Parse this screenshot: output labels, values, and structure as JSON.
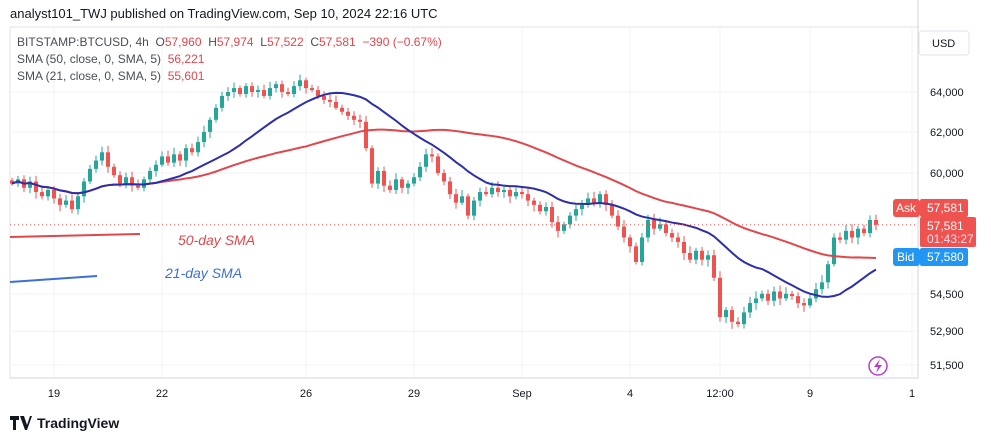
{
  "header": {
    "published": "analyst101_TWJ published on TradingView.com, Sep 10, 2024 22:16 UTC"
  },
  "legend": {
    "symbol": "BITSTAMP:BTCUSD, 4h",
    "o_label": "O",
    "o": "57,960",
    "h_label": "H",
    "h": "57,974",
    "l_label": "L",
    "l": "57,522",
    "c_label": "C",
    "c": "57,581",
    "change": "−390 (−0.67%)",
    "sma50_label": "SMA (50, close, 0, SMA, 5)",
    "sma50_value": "56,221",
    "sma21_label": "SMA (21, close, 0, SMA, 5)",
    "sma21_value": "55,601"
  },
  "annotations": {
    "sma50": "50-day SMA",
    "sma21": "21-day SMA"
  },
  "price_axis": {
    "currency": "USD",
    "ask_label": "Ask",
    "ask": "57,581",
    "last": "57,581",
    "countdown": "01:43:27",
    "bid_label": "Bid",
    "bid": "57,580"
  },
  "footer": {
    "brand": "TradingView"
  },
  "colors": {
    "up": "#26a69a",
    "down": "#ef5350",
    "sma50": "#e0474c",
    "sma21": "#2c2fa8",
    "ask": "#ef5350",
    "bid": "#2196f3"
  },
  "chart_data": {
    "type": "candlestick",
    "symbol": "BITSTAMP:BTCUSD",
    "interval": "4h",
    "y_scale": "log",
    "ylim": [
      50800,
      65500
    ],
    "grid": true,
    "y_ticks": [
      64000,
      62000,
      60000,
      54500,
      52900,
      51500
    ],
    "y_tick_labels": [
      "64,000",
      "62,000",
      "60,000",
      "54,500",
      "52,900",
      "51,500"
    ],
    "x_ticks": [
      {
        "label": "19",
        "candle": 7
      },
      {
        "label": "22",
        "candle": 25
      },
      {
        "label": "26",
        "candle": 49
      },
      {
        "label": "29",
        "candle": 67
      },
      {
        "label": "Sep",
        "candle": 85
      },
      {
        "label": "4",
        "candle": 103
      },
      {
        "label": "12:00",
        "candle": 118
      },
      {
        "label": "9",
        "candle": 133
      },
      {
        "label": "1",
        "candle": 150
      }
    ],
    "closes": [
      59500,
      59700,
      59300,
      59600,
      59100,
      58900,
      59200,
      58800,
      58500,
      58700,
      58300,
      58900,
      59600,
      60200,
      60600,
      61000,
      60300,
      59900,
      59500,
      59800,
      59400,
      59300,
      59700,
      60100,
      60400,
      60800,
      60500,
      60900,
      60600,
      61200,
      61000,
      61500,
      62000,
      62600,
      63200,
      63800,
      64000,
      64200,
      63900,
      64300,
      64000,
      64100,
      63800,
      64200,
      64400,
      64000,
      63900,
      64300,
      64600,
      64200,
      64100,
      63800,
      63600,
      63500,
      63200,
      63000,
      62800,
      62600,
      62500,
      61200,
      59500,
      60100,
      59400,
      59200,
      59700,
      59300,
      59500,
      59800,
      60300,
      60900,
      60800,
      60000,
      59600,
      59000,
      58600,
      58900,
      58000,
      58700,
      59100,
      59000,
      59300,
      59100,
      59200,
      58900,
      59100,
      59000,
      58700,
      58500,
      58200,
      58400,
      57700,
      57300,
      57600,
      58000,
      58300,
      58500,
      58800,
      58600,
      59000,
      58500,
      58000,
      57500,
      57000,
      56600,
      55900,
      57000,
      57800,
      57400,
      57600,
      57200,
      57000,
      56800,
      56300,
      56000,
      56400,
      56000,
      56200,
      55200,
      53500,
      53800,
      53300,
      53200,
      53700,
      54100,
      54300,
      54500,
      54200,
      54600,
      54300,
      54500,
      54400,
      54100,
      54000,
      54300,
      54700,
      55000,
      55800,
      57000,
      56900,
      57300,
      57000,
      57400,
      57200,
      57800,
      57581
    ],
    "series": [
      {
        "name": "SMA (50, close, 0, SMA, 5)",
        "period": 50
      },
      {
        "name": "SMA (21, close, 0, SMA, 5)",
        "period": 21
      }
    ]
  }
}
